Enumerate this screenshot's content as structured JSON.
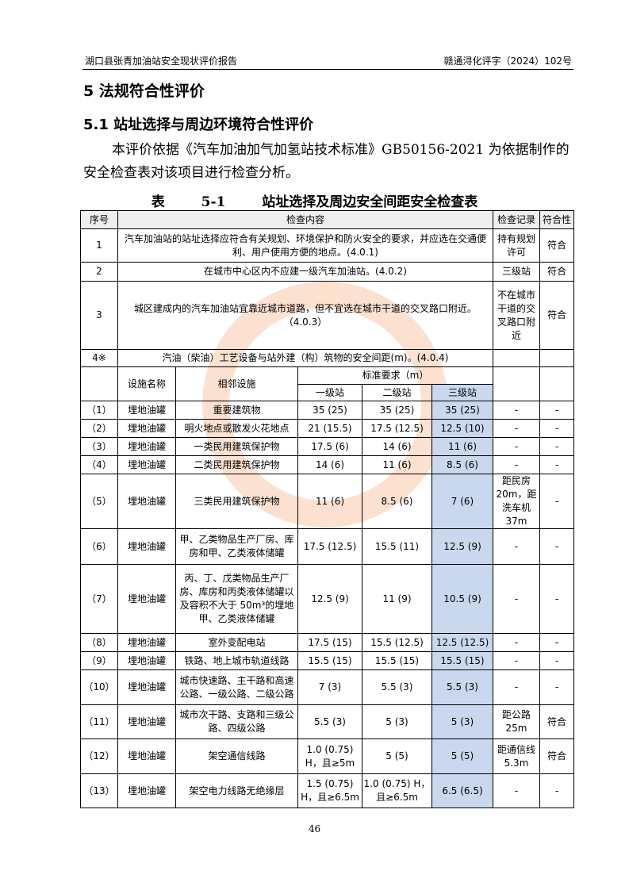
{
  "header": {
    "left": "湖口县张青加油站安全现状评价报告",
    "right": "赣通浔化评字（2024）102号"
  },
  "section_title": "5 法规符合性评价",
  "subsection_title": "5.1 站址选择与周边环境符合性评价",
  "paragraph": "本评价依据《汽车加油加气加氢站技术标准》GB50156-2021 为依据制作的安全检查表对该项目进行检查分析。",
  "table_title": "表 5-1 站址选择及周边安全间距安全检查表",
  "table": {
    "headers": [
      "序号",
      "检查内容",
      "检查记录",
      "符合性"
    ],
    "general_rows": [
      {
        "no": "1",
        "content": "汽车加油站的站址选择应符合有关规划、环境保护和防火安全的要求，并应选在交通便利、用户使用方便的地点。(4.0.1)",
        "record": "持有规划许可",
        "result": "符合"
      },
      {
        "no": "2",
        "content": "在城市中心区内不应建一级汽车加油站。(4.0.2)",
        "record": "三级站",
        "result": "符合"
      },
      {
        "no": "3",
        "content": "城区建成内的汽车加油站宜靠近城市道路，但不宜选在城市干道的交叉路口附近。（4.0.3）",
        "record": "不在城市干道的交叉路口附近",
        "result": "符合"
      },
      {
        "no": "4※",
        "content": "汽油（柴油）工艺设备与站外建（构）筑物的安全间距(m)。(4.0.4)",
        "record": "",
        "result": ""
      }
    ],
    "sub_headers": {
      "facility": "设施名称",
      "adjacent": "相邻设施",
      "standard": "标准要求（m）",
      "levels": [
        "一级站",
        "二级站",
        "三级站"
      ]
    },
    "distance_rows": [
      {
        "no": "（1）",
        "facility": "埋地油罐",
        "adjacent": "重要建筑物",
        "l1": "35 (25)",
        "l2": "35 (25)",
        "l3": "35 (25)",
        "record": "-",
        "result": "-"
      },
      {
        "no": "（2）",
        "facility": "埋地油罐",
        "adjacent": "明火地点或散发火花地点",
        "l1": "21 (15.5)",
        "l2": "17.5 (12.5)",
        "l3": "12.5 (10)",
        "record": "-",
        "result": "-"
      },
      {
        "no": "（3）",
        "facility": "埋地油罐",
        "adjacent": "一类民用建筑保护物",
        "l1": "17.5 (6)",
        "l2": "14 (6)",
        "l3": "11 (6)",
        "record": "-",
        "result": "-"
      },
      {
        "no": "（4）",
        "facility": "埋地油罐",
        "adjacent": "二类民用建筑保护物",
        "l1": "14 (6)",
        "l2": "11 (6)",
        "l3": "8.5 (6)",
        "record": "-",
        "result": "-"
      },
      {
        "no": "（5）",
        "facility": "埋地油罐",
        "adjacent": "三类民用建筑保护物",
        "l1": "11 (6)",
        "l2": "8.5 (6)",
        "l3": "7 (6)",
        "record": "距民房20m，距洗车机 37m",
        "result": "-"
      },
      {
        "no": "（6）",
        "facility": "埋地油罐",
        "adjacent": "甲、乙类物品生产厂房、库房和甲、乙类液体储罐",
        "l1": "17.5 (12.5)",
        "l2": "15.5 (11)",
        "l3": "12.5 (9)",
        "record": "-",
        "result": "-"
      },
      {
        "no": "（7）",
        "facility": "埋地油罐",
        "adjacent": "丙、丁、戊类物品生产厂房、库房和丙类液体储罐以及容积不大于 50m³的埋地甲、乙类液体储罐",
        "l1": "12.5 (9)",
        "l2": "11 (9)",
        "l3": "10.5 (9)",
        "record": "-",
        "result": "-"
      },
      {
        "no": "（8）",
        "facility": "埋地油罐",
        "adjacent": "室外变配电站",
        "l1": "17.5 (15)",
        "l2": "15.5 (12.5)",
        "l3": "12.5 (12.5)",
        "record": "-",
        "result": "-"
      },
      {
        "no": "（9）",
        "facility": "埋地油罐",
        "adjacent": "铁路、地上城市轨道线路",
        "l1": "15.5 (15)",
        "l2": "15.5 (15)",
        "l3": "15.5 (15)",
        "record": "-",
        "result": "-"
      },
      {
        "no": "（10）",
        "facility": "埋地油罐",
        "adjacent": "城市快速路、主干路和高速公路、一级公路、二级公路",
        "l1": "7 (3)",
        "l2": "5.5 (3)",
        "l3": "5.5 (3)",
        "record": "-",
        "result": "-"
      },
      {
        "no": "（11）",
        "facility": "埋地油罐",
        "adjacent": "城市次干路、支路和三级公路、四级公路",
        "l1": "5.5 (3)",
        "l2": "5 (3)",
        "l3": "5 (3)",
        "record": "距公路25m",
        "result": "符合"
      },
      {
        "no": "（12）",
        "facility": "埋地油罐",
        "adjacent": "架空通信线路",
        "l1": "1.0 (0.75) H，且≥5m",
        "l2": "5 (5)",
        "l3": "5 (5)",
        "record": "距通信线5.3m",
        "result": "符合"
      },
      {
        "no": "（13）",
        "facility": "埋地油罐",
        "adjacent": "架空电力线路无绝缘层",
        "l1": "1.5 (0.75) H，且≥6.5m",
        "l2": "1.0 (0.75) H，且≥6.5m",
        "l3": "6.5 (6.5)",
        "record": "-",
        "result": "-"
      }
    ]
  },
  "page_number": "46",
  "colors": {
    "highlight": "#c9d8ee",
    "header_bg": "#eeeeee"
  }
}
